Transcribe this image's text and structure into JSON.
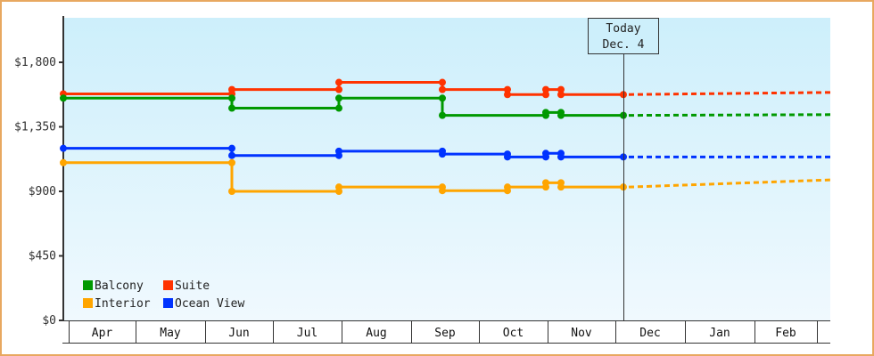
{
  "chart_data": {
    "type": "line",
    "subtype": "step",
    "title": "",
    "xlabel": "",
    "ylabel": "",
    "ylim": [
      0,
      2100
    ],
    "y_ticks": [
      {
        "value": 0,
        "label": "$0"
      },
      {
        "value": 450,
        "label": "$450"
      },
      {
        "value": 900,
        "label": "$900"
      },
      {
        "value": 1350,
        "label": "$1,350"
      },
      {
        "value": 1800,
        "label": "$1,800"
      }
    ],
    "categories": [
      "Apr",
      "May",
      "Jun",
      "Jul",
      "Aug",
      "Sep",
      "Oct",
      "Nov",
      "Dec",
      "Jan",
      "Feb"
    ],
    "today_marker": {
      "line1": "Today",
      "line2": "Dec. 4"
    },
    "legend": [
      {
        "name": "Balcony",
        "color": "#009900"
      },
      {
        "name": "Suite",
        "color": "#ff3300"
      },
      {
        "name": "Interior",
        "color": "#ffa500"
      },
      {
        "name": "Ocean View",
        "color": "#0033ff"
      }
    ],
    "legend_position": "lower-left",
    "grid": false,
    "series": [
      {
        "name": "Suite",
        "color": "#ff3300",
        "points": [
          {
            "x": "Apr 1",
            "value": 1580
          },
          {
            "x": "Jun 5",
            "value": 1610
          },
          {
            "x": "Aug 1",
            "value": 1660
          },
          {
            "x": "Sep 1",
            "value": 1610
          },
          {
            "x": "Oct 1",
            "value": 1575
          },
          {
            "x": "Nov 1",
            "value": 1610
          },
          {
            "x": "Nov 7",
            "value": 1575
          },
          {
            "x": "Dec 4",
            "value": 1575
          }
        ],
        "forecast": [
          {
            "x": "Dec 4",
            "value": 1575
          },
          {
            "x": "Feb end",
            "value": 1590
          }
        ]
      },
      {
        "name": "Balcony",
        "color": "#009900",
        "points": [
          {
            "x": "Apr 1",
            "value": 1550
          },
          {
            "x": "Jun 5",
            "value": 1480
          },
          {
            "x": "Aug 1",
            "value": 1550
          },
          {
            "x": "Sep 1",
            "value": 1430
          },
          {
            "x": "Nov 1",
            "value": 1450
          },
          {
            "x": "Nov 7",
            "value": 1430
          },
          {
            "x": "Dec 4",
            "value": 1430
          }
        ],
        "forecast": [
          {
            "x": "Dec 4",
            "value": 1430
          },
          {
            "x": "Feb end",
            "value": 1435
          }
        ]
      },
      {
        "name": "Ocean View",
        "color": "#0033ff",
        "points": [
          {
            "x": "Apr 1",
            "value": 1200
          },
          {
            "x": "Jun 5",
            "value": 1150
          },
          {
            "x": "Aug 1",
            "value": 1180
          },
          {
            "x": "Sep 1",
            "value": 1160
          },
          {
            "x": "Oct 1",
            "value": 1140
          },
          {
            "x": "Nov 1",
            "value": 1165
          },
          {
            "x": "Nov 7",
            "value": 1140
          },
          {
            "x": "Dec 4",
            "value": 1140
          }
        ],
        "forecast": [
          {
            "x": "Dec 4",
            "value": 1140
          },
          {
            "x": "Feb end",
            "value": 1140
          }
        ]
      },
      {
        "name": "Interior",
        "color": "#ffa500",
        "points": [
          {
            "x": "Apr 1",
            "value": 1100
          },
          {
            "x": "Jun 5",
            "value": 900
          },
          {
            "x": "Aug 1",
            "value": 930
          },
          {
            "x": "Sep 1",
            "value": 905
          },
          {
            "x": "Oct 1",
            "value": 930
          },
          {
            "x": "Nov 1",
            "value": 960
          },
          {
            "x": "Nov 7",
            "value": 930
          },
          {
            "x": "Dec 4",
            "value": 930
          }
        ],
        "forecast": [
          {
            "x": "Dec 4",
            "value": 930
          },
          {
            "x": "Feb end",
            "value": 980
          }
        ]
      }
    ]
  },
  "colors": {
    "frame_border": "#e8a860",
    "plot_bg_top": "#cdeffb",
    "plot_bg_bottom": "#f0f9fe",
    "axis": "#333333"
  }
}
